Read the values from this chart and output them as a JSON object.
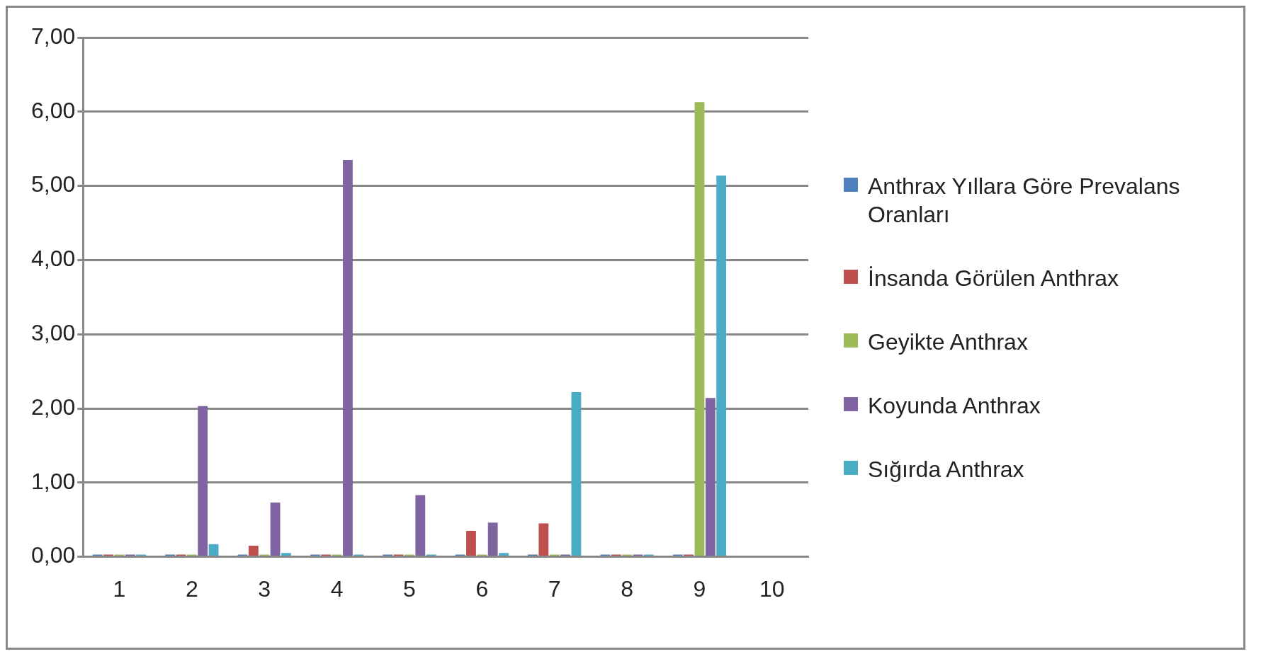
{
  "chart_data": {
    "type": "bar",
    "categories": [
      "1",
      "2",
      "3",
      "4",
      "5",
      "6",
      "7",
      "8",
      "9",
      "10"
    ],
    "ylim": [
      0,
      7
    ],
    "yticks": [
      {
        "value": 0,
        "label": "0,00"
      },
      {
        "value": 1,
        "label": "1,00"
      },
      {
        "value": 2,
        "label": "2,00"
      },
      {
        "value": 3,
        "label": "3,00"
      },
      {
        "value": 4,
        "label": "4,00"
      },
      {
        "value": 5,
        "label": "5,00"
      },
      {
        "value": 6,
        "label": "6,00"
      },
      {
        "value": 7,
        "label": "7,00"
      }
    ],
    "grid": "y",
    "legend": "right",
    "series": [
      {
        "name": "Anthrax Yıllara Göre Prevalans Oranları",
        "color": "#4f81bd",
        "values": [
          0,
          0,
          0,
          0,
          0,
          0,
          0,
          0,
          0,
          null
        ]
      },
      {
        "name": "İnsanda Görülen Anthrax",
        "color": "#c0504d",
        "values": [
          0,
          0,
          0.15,
          0,
          0,
          0.35,
          0.45,
          0,
          0,
          null
        ]
      },
      {
        "name": "Geyikte Anthrax",
        "color": "#9bbb59",
        "values": [
          0,
          0,
          0,
          0,
          0,
          0,
          0,
          0,
          6.13,
          null
        ]
      },
      {
        "name": "Koyunda Anthrax",
        "color": "#8064a2",
        "values": [
          0,
          2.03,
          0.73,
          5.35,
          0.83,
          0.46,
          0,
          0,
          2.14,
          null
        ]
      },
      {
        "name": "Sığırda Anthrax",
        "color": "#4bacc6",
        "values": [
          0,
          0.17,
          0.05,
          0,
          0,
          0.05,
          2.22,
          0,
          5.14,
          null
        ]
      }
    ]
  }
}
